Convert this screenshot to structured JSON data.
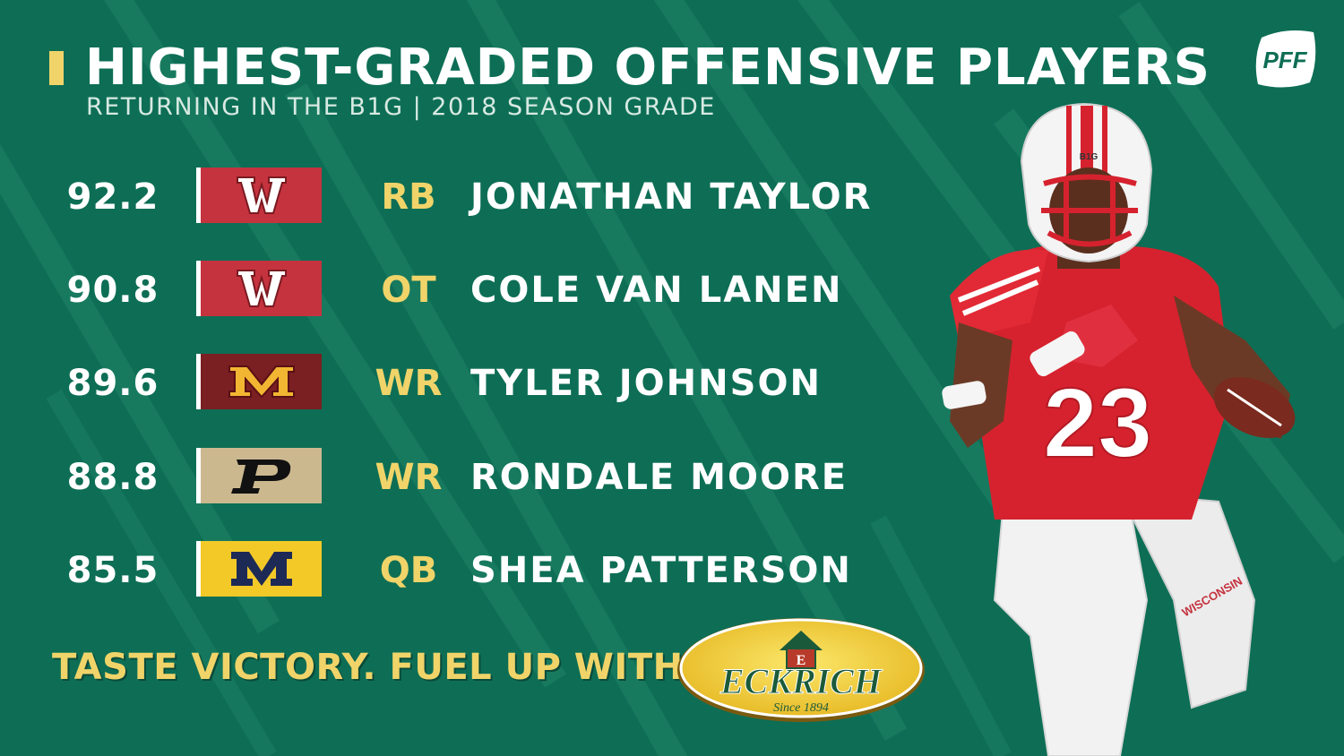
{
  "header": {
    "title": "HIGHEST-GRADED OFFENSIVE PLAYERS",
    "subtitle": "RETURNING IN THE B1G | 2018 SEASON GRADE",
    "brand_logo_text": "PFF"
  },
  "colors": {
    "background": "#0d6e55",
    "accent_yellow": "#f0d469",
    "wisconsin_red": "#c5333f",
    "minnesota_maroon": "#7a1f22",
    "purdue_gold": "#cbb88f",
    "michigan_maize": "#f3c928",
    "michigan_blue": "#1d2a55"
  },
  "players": [
    {
      "grade": "92.2",
      "team_logo": "wisconsin-logo",
      "position": "RB",
      "name": "JONATHAN TAYLOR"
    },
    {
      "grade": "90.8",
      "team_logo": "wisconsin-logo",
      "position": "OT",
      "name": "COLE VAN LANEN"
    },
    {
      "grade": "89.6",
      "team_logo": "minnesota-logo",
      "position": "WR",
      "name": "TYLER JOHNSON"
    },
    {
      "grade": "88.8",
      "team_logo": "purdue-logo",
      "position": "WR",
      "name": "RONDALE MOORE"
    },
    {
      "grade": "85.5",
      "team_logo": "michigan-logo",
      "position": "QB",
      "name": "SHEA PATTERSON"
    }
  ],
  "sponsor": {
    "tagline": "TASTE VICTORY. FUEL UP WITH",
    "logo_name": "ECKRICH",
    "logo_since": "Since 1894"
  },
  "player_photo": {
    "helmet_text": "B1G",
    "jersey_number": "23",
    "pants_text": "WISCONSIN"
  }
}
